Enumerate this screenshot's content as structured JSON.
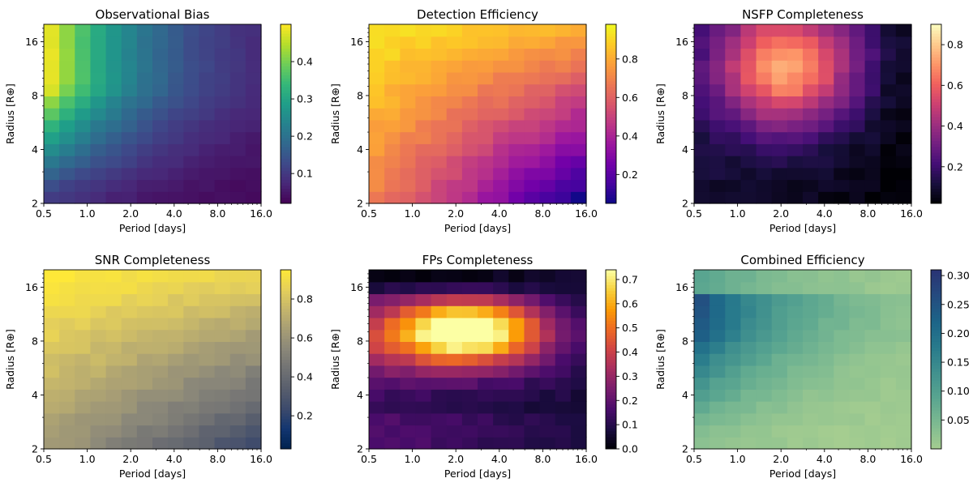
{
  "figure": {
    "layout": "2x3 grid of heatmaps",
    "x_grid": {
      "label": "Period [days]",
      "scale": "log2",
      "range": [
        0.5,
        16.0
      ],
      "ticks": [
        "0.5",
        "1.0",
        "2.0",
        "4.0",
        "8.0",
        "16.0"
      ]
    },
    "y_grid": {
      "label": "Radius [R⊕]",
      "scale": "log2",
      "range": [
        2,
        20
      ],
      "ticks": [
        "2",
        "4",
        "8",
        "16"
      ]
    },
    "cells": {
      "nx": 14,
      "ny": 15
    }
  },
  "chart_data": [
    {
      "type": "heatmap",
      "title": "Observational Bias",
      "xlabel": "Period [days]",
      "ylabel": "Radius [R⊕]",
      "colormap": "viridis",
      "colorbar": {
        "range": [
          0.02,
          0.5
        ],
        "ticks": [
          0.1,
          0.2,
          0.3,
          0.4
        ],
        "tick_labels": [
          "0.1",
          "0.2",
          "0.3",
          "0.4"
        ]
      },
      "description_of_values": "value ≈ 0.5 at shortest period & largest radius, falling with period (∝P^-2/3) and with smaller radius",
      "model": "bias"
    },
    {
      "type": "heatmap",
      "title": "Detection Efficiency",
      "xlabel": "Period [days]",
      "ylabel": "Radius [R⊕]",
      "colormap": "plasma",
      "colorbar": {
        "range": [
          0.05,
          0.98
        ],
        "ticks": [
          0.2,
          0.4,
          0.6,
          0.8
        ],
        "tick_labels": [
          "0.2",
          "0.4",
          "0.6",
          "0.8"
        ]
      },
      "model": "detection"
    },
    {
      "type": "heatmap",
      "title": "NSFP Completeness",
      "xlabel": "Period [days]",
      "ylabel": "Radius [R⊕]",
      "colormap": "magma",
      "colorbar": {
        "range": [
          0.02,
          0.9
        ],
        "ticks": [
          0.2,
          0.4,
          0.6,
          0.8
        ],
        "tick_labels": [
          "0.2",
          "0.4",
          "0.6",
          "0.8"
        ]
      },
      "model": "nsfp"
    },
    {
      "type": "heatmap",
      "title": "SNR Completeness",
      "xlabel": "Period [days]",
      "ylabel": "Radius [R⊕]",
      "colormap": "cividis",
      "colorbar": {
        "range": [
          0.03,
          0.95
        ],
        "ticks": [
          0.2,
          0.4,
          0.6,
          0.8
        ],
        "tick_labels": [
          "0.2",
          "0.4",
          "0.6",
          "0.8"
        ]
      },
      "model": "snr"
    },
    {
      "type": "heatmap",
      "title": "FPs Completeness",
      "xlabel": "Period [days]",
      "ylabel": "Radius [R⊕]",
      "colormap": "inferno",
      "colorbar": {
        "range": [
          0.0,
          0.74
        ],
        "ticks": [
          0.0,
          0.1,
          0.2,
          0.3,
          0.4,
          0.5,
          0.6,
          0.7
        ],
        "tick_labels": [
          "0.0",
          "0.1",
          "0.2",
          "0.3",
          "0.4",
          "0.5",
          "0.6",
          "0.7"
        ]
      },
      "model": "fps"
    },
    {
      "type": "heatmap",
      "title": "Combined Efficiency",
      "xlabel": "Period [days]",
      "ylabel": "Radius [R⊕]",
      "colormap": "crest",
      "colorbar": {
        "range": [
          0.0,
          0.31
        ],
        "ticks": [
          0.05,
          0.1,
          0.15,
          0.2,
          0.25,
          0.3
        ],
        "tick_labels": [
          "0.05",
          "0.10",
          "0.15",
          "0.20",
          "0.25",
          "0.30"
        ]
      },
      "model": "combined"
    }
  ]
}
